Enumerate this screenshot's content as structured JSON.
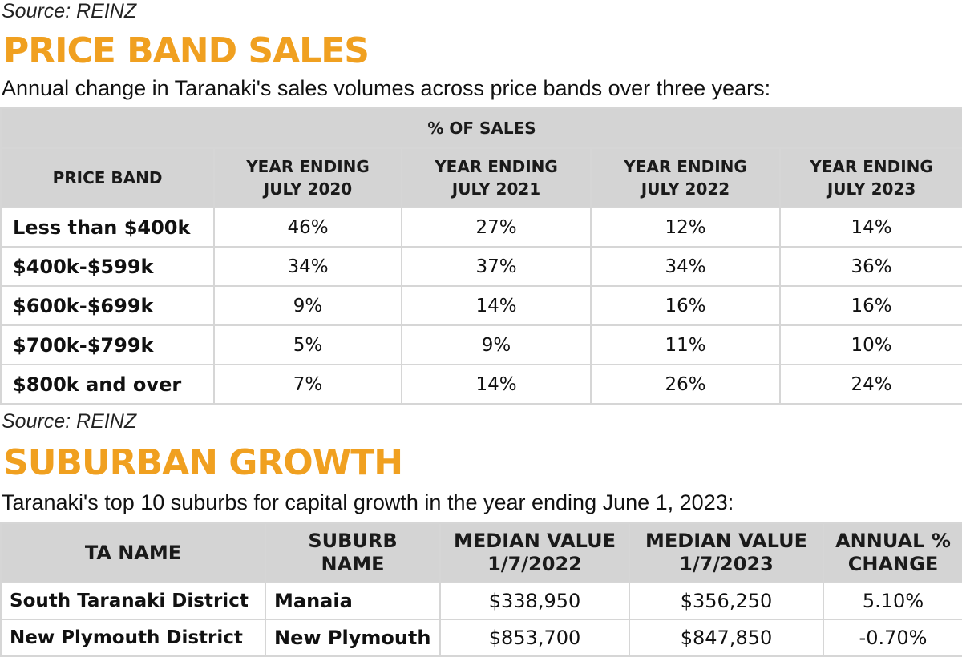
{
  "source1": "Source: REINZ",
  "price_band": {
    "title": "PRICE BAND SALES",
    "subtitle": "Annual change in Taranaki's sales volumes across price bands over three years:",
    "group_header": "% OF SALES",
    "columns": [
      "PRICE BAND",
      "YEAR ENDING\nJULY 2020",
      "YEAR ENDING\nJULY 2021",
      "YEAR ENDING\nJULY 2022",
      "YEAR ENDING\nJULY 2023"
    ],
    "rows": [
      [
        "Less than $400k",
        "46%",
        "27%",
        "12%",
        "14%"
      ],
      [
        "$400k-$599k",
        "34%",
        "37%",
        "34%",
        "36%"
      ],
      [
        "$600k-$699k",
        "9%",
        "14%",
        "16%",
        "16%"
      ],
      [
        "$700k-$799k",
        "5%",
        "9%",
        "11%",
        "10%"
      ],
      [
        "$800k and over",
        "7%",
        "14%",
        "26%",
        "24%"
      ]
    ]
  },
  "source2": "Source: REINZ",
  "suburban": {
    "title": "SUBURBAN GROWTH",
    "subtitle": "Taranaki's top 10 suburbs for capital growth in the year ending June 1, 2023:",
    "columns": [
      "TA NAME",
      "SUBURB\nNAME",
      "MEDIAN VALUE\n1/7/2022",
      "MEDIAN VALUE\n1/7/2023",
      "ANNUAL %\nCHANGE"
    ],
    "rows": [
      [
        "South Taranaki District",
        "Manaia",
        "$338,950",
        "$356,250",
        "5.10%"
      ],
      [
        "New Plymouth District",
        "New Plymouth",
        "$853,700",
        "$847,850",
        "-0.70%"
      ]
    ]
  }
}
